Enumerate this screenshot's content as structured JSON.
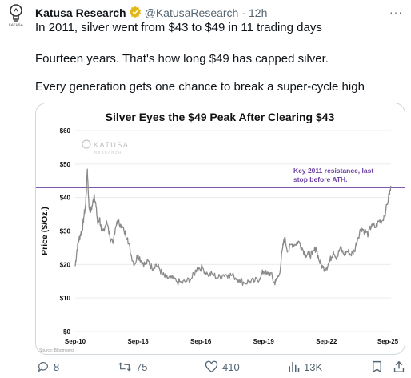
{
  "tweet": {
    "author_name": "Katusa Research",
    "handle": "@KatusaResearch",
    "sep": "·",
    "time": "12h",
    "avatar_label": "KATUSA",
    "more_label": "···",
    "lines": [
      "In 2011, silver went from $43 to $49 in 11 trading days",
      "Fourteen years. That's how long $49 has capped silver.",
      "Every generation gets one chance to break a super-cycle high"
    ]
  },
  "chart_data": {
    "type": "line",
    "title": "Silver Eyes the $49 Peak After Clearing $43",
    "ylabel": "Price ($/Oz.)",
    "ylim": [
      0,
      60
    ],
    "yticks": [
      "$0",
      "$10",
      "$20",
      "$30",
      "$40",
      "$50",
      "$60"
    ],
    "xticks": [
      "Sep-10",
      "Sep-13",
      "Sep-16",
      "Sep-19",
      "Sep-22",
      "Sep-25"
    ],
    "xrange": [
      "Sep-10",
      "Sep-25"
    ],
    "resistance_value": 43,
    "resistance_label_line1": "Key 2011 resistance,  last",
    "resistance_label_line2": "stop before ATH.",
    "watermark": "KATUSA",
    "watermark_sub": "RESEARCH",
    "source": "Source: Bloomberg",
    "grid": true,
    "series": [
      {
        "x": [
          2010.67,
          2010.75,
          2010.83,
          2010.92,
          2011.0,
          2011.08,
          2011.17,
          2011.25,
          2011.33,
          2011.42,
          2011.5,
          2011.58,
          2011.67,
          2011.75,
          2011.83,
          2011.92,
          2012.0,
          2012.17,
          2012.33,
          2012.5,
          2012.67,
          2012.83,
          2013.0,
          2013.17,
          2013.33,
          2013.5,
          2013.67,
          2013.83,
          2014.0,
          2014.17,
          2014.33,
          2014.5,
          2014.67,
          2014.83,
          2015.0,
          2015.25,
          2015.5,
          2015.75,
          2016.0,
          2016.25,
          2016.5,
          2016.75,
          2017.0,
          2017.25,
          2017.5,
          2017.75,
          2018.0,
          2018.25,
          2018.5,
          2018.75,
          2019.0,
          2019.25,
          2019.5,
          2019.67,
          2019.83,
          2020.0,
          2020.17,
          2020.25,
          2020.42,
          2020.58,
          2020.67,
          2020.83,
          2021.0,
          2021.17,
          2021.33,
          2021.5,
          2021.67,
          2021.83,
          2022.0,
          2022.17,
          2022.33,
          2022.5,
          2022.67,
          2022.83,
          2023.0,
          2023.17,
          2023.33,
          2023.5,
          2023.67,
          2023.83,
          2024.0,
          2024.17,
          2024.33,
          2024.5,
          2024.67,
          2024.83,
          2025.0,
          2025.17,
          2025.33,
          2025.5,
          2025.67,
          2025.75
        ],
        "values": [
          19.5,
          24,
          27,
          29,
          30,
          34,
          38,
          48.5,
          37,
          36,
          38,
          41,
          37,
          32,
          34,
          30,
          30,
          33,
          28,
          27,
          33,
          32,
          30,
          28,
          23,
          20,
          23,
          21,
          20,
          21,
          19,
          20,
          19,
          17,
          16,
          16,
          15,
          14.5,
          15,
          16,
          19,
          19,
          17,
          17,
          16,
          17,
          17,
          16.5,
          15.5,
          14.5,
          15,
          15,
          16,
          18,
          17,
          17.5,
          14.5,
          15,
          17,
          25,
          28,
          24,
          26,
          26,
          27,
          25,
          23,
          23,
          23,
          25,
          21,
          19,
          19,
          21,
          24,
          22,
          25,
          23,
          24,
          23,
          24,
          28,
          31,
          30,
          29,
          32,
          31,
          33,
          33,
          36,
          41,
          43
        ]
      }
    ]
  },
  "actions": {
    "replies": "8",
    "reposts": "75",
    "likes": "410",
    "views": "13K"
  }
}
